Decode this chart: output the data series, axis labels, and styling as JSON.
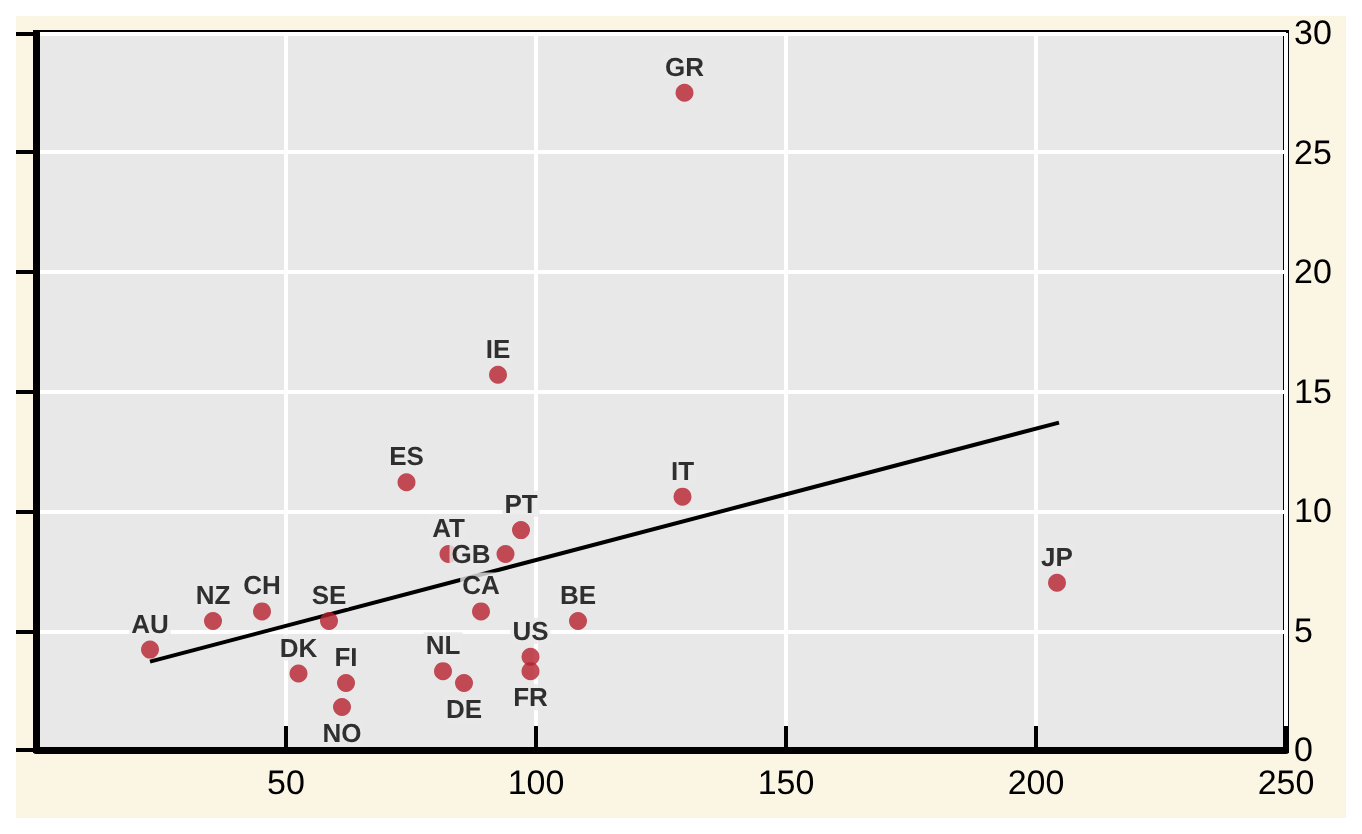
{
  "chart_data": {
    "type": "scatter",
    "xlim": [
      0,
      250
    ],
    "xticks": [
      50,
      100,
      150,
      200,
      250
    ],
    "ylim": [
      0,
      30
    ],
    "yticks": [
      0,
      5,
      10,
      15,
      20,
      25,
      30
    ],
    "grid": true,
    "series": [
      {
        "marker": "circle",
        "color": "#b5202e",
        "x": [
          129.7,
          92.4,
          74.1,
          129.3,
          97.0,
          93.9,
          82.5,
          204.2,
          45.2,
          35.4,
          58.6,
          89.0,
          108.4,
          22.8,
          98.9,
          98.9,
          81.4,
          52.5,
          62.0,
          85.6,
          61.2
        ],
        "values": [
          27.5,
          15.7,
          11.2,
          10.6,
          9.2,
          8.2,
          8.2,
          7.0,
          5.8,
          5.4,
          5.4,
          5.8,
          5.4,
          4.2,
          3.9,
          3.3,
          3.3,
          3.2,
          2.8,
          2.8,
          1.8
        ],
        "value_labels": [
          "GR",
          "IE",
          "ES",
          "IT",
          "PT",
          "GB",
          "AT",
          "JP",
          "CH",
          "NZ",
          "SE",
          "CA",
          "BE",
          "AU",
          "US",
          "FR",
          "NL",
          "DK",
          "FI",
          "DE",
          "NO"
        ]
      },
      {
        "type": "line",
        "marker": "none",
        "color": "#000000",
        "x": [
          22.8,
          204.6
        ],
        "values": [
          3.7,
          13.7
        ]
      }
    ]
  }
}
